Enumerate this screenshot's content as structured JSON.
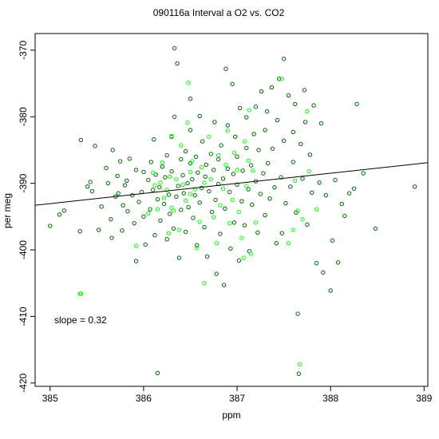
{
  "chart_data": {
    "type": "scatter",
    "title": "090116a   Interval a O2 vs. CO2",
    "xlabel": "ppm",
    "ylabel": "per meg",
    "xlim": [
      384.84,
      389.04
    ],
    "ylim": [
      -420.5,
      -367.5
    ],
    "x_ticks": [
      385,
      386,
      387,
      388,
      389
    ],
    "y_ticks": [
      -420,
      -410,
      -400,
      -390,
      -380,
      -370
    ],
    "x_tick_labels": [
      "385",
      "386",
      "387",
      "388",
      "389"
    ],
    "y_tick_labels": [
      "-420",
      "-410",
      "-400",
      "-390",
      "-380",
      "-370"
    ],
    "annotation": "slope =  0.32",
    "regression_line": {
      "x": [
        384.84,
        389.04
      ],
      "y": [
        -393.3,
        -386.9
      ],
      "color": "#000000"
    },
    "grid": false,
    "legend": "none",
    "series": [
      {
        "color": "#006400",
        "points": [
          [
            385.0,
            -396.4
          ],
          [
            385.1,
            -394.7
          ],
          [
            385.15,
            -394.1
          ],
          [
            385.32,
            -397.2
          ],
          [
            385.33,
            -383.5
          ],
          [
            385.4,
            -390.5
          ],
          [
            385.43,
            -389.8
          ],
          [
            385.45,
            -391.2
          ],
          [
            385.48,
            -384.4
          ],
          [
            385.52,
            -397.0
          ],
          [
            385.55,
            -393.5
          ],
          [
            385.6,
            -387.7
          ],
          [
            385.62,
            -390.0
          ],
          [
            385.65,
            -395.4
          ],
          [
            385.66,
            -398.2
          ],
          [
            385.67,
            -385.0
          ],
          [
            385.7,
            -392.0
          ],
          [
            385.72,
            -388.9
          ],
          [
            385.73,
            -391.5
          ],
          [
            385.75,
            -386.7
          ],
          [
            385.77,
            -397.1
          ],
          [
            385.78,
            -393.3
          ],
          [
            385.8,
            -390.3
          ],
          [
            385.82,
            -389.6
          ],
          [
            385.83,
            -394.2
          ],
          [
            385.85,
            -386.3
          ],
          [
            385.88,
            -391.8
          ],
          [
            385.9,
            -396.0
          ],
          [
            385.92,
            -388.0
          ],
          [
            385.92,
            -401.7
          ],
          [
            385.95,
            -392.8
          ],
          [
            385.98,
            -391.3
          ],
          [
            386.0,
            -388.3
          ],
          [
            386.0,
            -395.0
          ],
          [
            386.02,
            -399.2
          ],
          [
            386.05,
            -389.5
          ],
          [
            386.07,
            -393.9
          ],
          [
            386.08,
            -386.8
          ],
          [
            386.1,
            -391.0
          ],
          [
            386.11,
            -383.4
          ],
          [
            386.12,
            -397.8
          ],
          [
            386.13,
            -388.7
          ],
          [
            386.15,
            -392.4
          ],
          [
            386.15,
            -418.5
          ],
          [
            386.17,
            -390.6
          ],
          [
            386.18,
            -395.6
          ],
          [
            386.2,
            -387.5
          ],
          [
            386.22,
            -393.1
          ],
          [
            386.23,
            -389.1
          ],
          [
            386.25,
            -385.8
          ],
          [
            386.25,
            -398.4
          ],
          [
            386.27,
            -391.7
          ],
          [
            386.28,
            -394.6
          ],
          [
            386.3,
            -383.0
          ],
          [
            386.3,
            -388.2
          ],
          [
            386.32,
            -396.8
          ],
          [
            386.33,
            -380.0
          ],
          [
            386.33,
            -369.7
          ],
          [
            386.35,
            -392.0
          ],
          [
            386.36,
            -372.0
          ],
          [
            386.37,
            -390.4
          ],
          [
            386.38,
            -401.2
          ],
          [
            386.4,
            -386.4
          ],
          [
            386.4,
            -394.0
          ],
          [
            386.42,
            -388.8
          ],
          [
            386.43,
            -391.5
          ],
          [
            386.45,
            -385.2
          ],
          [
            386.45,
            -397.3
          ],
          [
            386.47,
            -390.0
          ],
          [
            386.48,
            -393.6
          ],
          [
            386.5,
            -387.0
          ],
          [
            386.5,
            -382.0
          ],
          [
            386.5,
            -377.3
          ],
          [
            386.52,
            -389.4
          ],
          [
            386.53,
            -395.2
          ],
          [
            386.55,
            -391.8
          ],
          [
            386.56,
            -386.0
          ],
          [
            386.57,
            -399.3
          ],
          [
            386.58,
            -388.4
          ],
          [
            386.6,
            -392.9
          ],
          [
            386.6,
            -379.9
          ],
          [
            386.62,
            -390.7
          ],
          [
            386.63,
            -383.7
          ],
          [
            386.65,
            -396.6
          ],
          [
            386.66,
            -389.0
          ],
          [
            386.67,
            -387.2
          ],
          [
            386.68,
            -401.0
          ],
          [
            386.7,
            -391.2
          ],
          [
            386.72,
            -385.6
          ],
          [
            386.73,
            -394.3
          ],
          [
            386.75,
            -388.0
          ],
          [
            386.76,
            -380.8
          ],
          [
            386.77,
            -392.5
          ],
          [
            386.78,
            -403.6
          ],
          [
            386.8,
            -390.1
          ],
          [
            386.8,
            -386.4
          ],
          [
            386.82,
            -397.6
          ],
          [
            386.83,
            -384.3
          ],
          [
            386.85,
            -389.3
          ],
          [
            386.86,
            -405.3
          ],
          [
            386.87,
            -393.8
          ],
          [
            386.88,
            -372.8
          ],
          [
            386.9,
            -387.8
          ],
          [
            386.9,
            -381.3
          ],
          [
            386.92,
            -391.3
          ],
          [
            386.93,
            -399.8
          ],
          [
            386.95,
            -375.1
          ],
          [
            386.96,
            -388.6
          ],
          [
            386.97,
            -395.9
          ],
          [
            386.98,
            -383.0
          ],
          [
            387.0,
            -390.2
          ],
          [
            387.0,
            -386.0
          ],
          [
            387.02,
            -401.6
          ],
          [
            387.03,
            -378.7
          ],
          [
            387.05,
            -392.7
          ],
          [
            387.06,
            -388.1
          ],
          [
            387.08,
            -396.3
          ],
          [
            387.1,
            -384.7
          ],
          [
            387.1,
            -380.1
          ],
          [
            387.12,
            -390.9
          ],
          [
            387.13,
            -400.2
          ],
          [
            387.15,
            -387.3
          ],
          [
            387.16,
            -393.2
          ],
          [
            387.18,
            -382.6
          ],
          [
            387.2,
            -389.7
          ],
          [
            387.2,
            -378.5
          ],
          [
            387.22,
            -397.4
          ],
          [
            387.23,
            -385.0
          ],
          [
            387.25,
            -391.6
          ],
          [
            387.26,
            -376.2
          ],
          [
            387.28,
            -388.5
          ],
          [
            387.3,
            -394.8
          ],
          [
            387.3,
            -382.0
          ],
          [
            387.32,
            -379.2
          ],
          [
            387.33,
            -387.0
          ],
          [
            387.35,
            -392.3
          ],
          [
            387.37,
            -375.6
          ],
          [
            387.38,
            -384.8
          ],
          [
            387.4,
            -390.6
          ],
          [
            387.42,
            -399.0
          ],
          [
            387.43,
            -380.5
          ],
          [
            387.45,
            -374.3
          ],
          [
            387.47,
            -389.1
          ],
          [
            387.48,
            -397.5
          ],
          [
            387.5,
            -383.6
          ],
          [
            387.5,
            -371.3
          ],
          [
            387.52,
            -393.0
          ],
          [
            387.55,
            -376.8
          ],
          [
            387.57,
            -390.5
          ],
          [
            387.6,
            -382.3
          ],
          [
            387.6,
            -386.8
          ],
          [
            387.62,
            -378.1
          ],
          [
            387.63,
            -394.4
          ],
          [
            387.65,
            -409.6
          ],
          [
            387.66,
            -418.6
          ],
          [
            387.68,
            -384.1
          ],
          [
            387.7,
            -389.3
          ],
          [
            387.72,
            -376.0
          ],
          [
            387.73,
            -380.8
          ],
          [
            387.75,
            -396.2
          ],
          [
            387.78,
            -385.7
          ],
          [
            387.8,
            -391.4
          ],
          [
            387.82,
            -378.3
          ],
          [
            387.85,
            -402.0
          ],
          [
            387.88,
            -389.9
          ],
          [
            387.9,
            -381.0
          ],
          [
            387.92,
            -403.4
          ],
          [
            387.95,
            -391.8
          ],
          [
            388.0,
            -406.1
          ],
          [
            388.02,
            -398.6
          ],
          [
            388.05,
            -389.5
          ],
          [
            388.08,
            -401.9
          ],
          [
            388.12,
            -393.1
          ],
          [
            388.15,
            -394.9
          ],
          [
            388.2,
            -391.5
          ],
          [
            388.25,
            -390.8
          ],
          [
            388.28,
            -378.1
          ],
          [
            388.35,
            -388.5
          ],
          [
            388.48,
            -396.8
          ],
          [
            388.9,
            -390.5
          ]
        ]
      },
      {
        "color": "#00ff00",
        "points": [
          [
            385.32,
            -406.6
          ],
          [
            385.33,
            -406.6
          ],
          [
            385.92,
            -399.4
          ],
          [
            386.05,
            -394.5
          ],
          [
            386.1,
            -388.4
          ],
          [
            386.12,
            -390.3
          ],
          [
            386.15,
            -393.9
          ],
          [
            386.18,
            -389.9
          ],
          [
            386.2,
            -386.9
          ],
          [
            386.22,
            -392.2
          ],
          [
            386.25,
            -391.0
          ],
          [
            386.27,
            -397.5
          ],
          [
            386.28,
            -389.0
          ],
          [
            386.3,
            -393.7
          ],
          [
            386.3,
            -382.9
          ],
          [
            386.32,
            -394.1
          ],
          [
            386.35,
            -389.4
          ],
          [
            386.38,
            -397.0
          ],
          [
            386.4,
            -384.3
          ],
          [
            386.42,
            -390.2
          ],
          [
            386.45,
            -392.6
          ],
          [
            386.47,
            -380.9
          ],
          [
            386.48,
            -374.9
          ],
          [
            386.5,
            -388.3
          ],
          [
            386.5,
            -391.6
          ],
          [
            386.52,
            -386.7
          ],
          [
            386.55,
            -390.9
          ],
          [
            386.57,
            -399.7
          ],
          [
            386.6,
            -395.8
          ],
          [
            386.62,
            -387.6
          ],
          [
            386.65,
            -389.9
          ],
          [
            386.65,
            -405.0
          ],
          [
            386.7,
            -383.0
          ],
          [
            386.72,
            -389.4
          ],
          [
            386.75,
            -395.1
          ],
          [
            386.78,
            -399.0
          ],
          [
            386.8,
            -385.8
          ],
          [
            386.82,
            -393.3
          ],
          [
            386.85,
            -390.8
          ],
          [
            386.88,
            -387.2
          ],
          [
            386.9,
            -382.1
          ],
          [
            386.92,
            -396.0
          ],
          [
            386.95,
            -392.5
          ],
          [
            386.97,
            -385.4
          ],
          [
            387.0,
            -388.0
          ],
          [
            387.02,
            -394.3
          ],
          [
            387.05,
            -398.2
          ],
          [
            387.07,
            -401.2
          ],
          [
            387.08,
            -383.7
          ],
          [
            387.1,
            -390.4
          ],
          [
            387.12,
            -386.6
          ],
          [
            387.13,
            -379.0
          ],
          [
            387.15,
            -400.6
          ],
          [
            387.17,
            -388.1
          ],
          [
            387.2,
            -395.9
          ],
          [
            387.48,
            -374.3
          ],
          [
            387.55,
            -399.0
          ],
          [
            387.6,
            -397.0
          ],
          [
            387.62,
            -389.6
          ],
          [
            387.65,
            -394.1
          ],
          [
            387.67,
            -417.2
          ],
          [
            387.7,
            -395.4
          ],
          [
            387.75,
            -379.2
          ],
          [
            387.77,
            -388.2
          ],
          [
            387.85,
            -393.9
          ]
        ]
      }
    ]
  }
}
